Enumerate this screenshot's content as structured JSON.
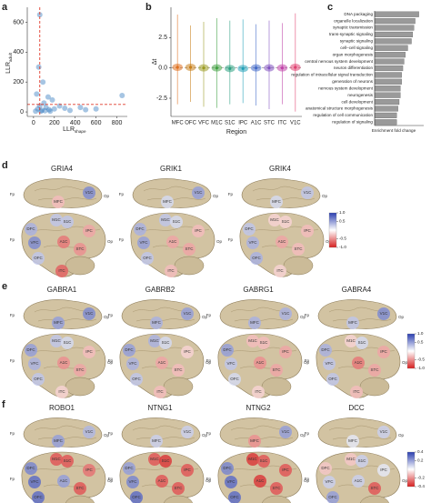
{
  "panel_labels": [
    "a",
    "b",
    "c",
    "d",
    "e",
    "f"
  ],
  "chart_data": [
    {
      "type": "scatter",
      "xlabel": "LLR",
      "xlabel_sub": "shape",
      "ylabel": "LLR",
      "ylabel_sub": "adult",
      "x": [
        40,
        80,
        120,
        150,
        60,
        100,
        30,
        50,
        60,
        200,
        250,
        300,
        350,
        450,
        500,
        600,
        850,
        140,
        180,
        90,
        20,
        70,
        110,
        160
      ],
      "y": [
        20,
        10,
        30,
        15,
        40,
        60,
        120,
        300,
        650,
        20,
        40,
        25,
        10,
        30,
        15,
        20,
        110,
        100,
        80,
        200,
        5,
        5,
        8,
        5
      ],
      "color": "#3a7fc0",
      "xlim": [
        -60,
        900
      ],
      "ylim": [
        -30,
        700
      ],
      "xticks": [
        0,
        200,
        400,
        600,
        800
      ],
      "yticks": [
        0,
        200,
        400,
        600
      ],
      "vline": 60,
      "hline": 50,
      "line_color": "#e03a2a"
    },
    {
      "type": "violin",
      "xlabel": "Region",
      "ylabel": "Δt",
      "categories": [
        "MFC",
        "OFC",
        "VFC",
        "M1C",
        "S1C",
        "IPC",
        "A1C",
        "STC",
        "ITC",
        "V1C"
      ],
      "values": [
        0.05,
        0.05,
        0.0,
        0.0,
        -0.05,
        -0.05,
        0.0,
        0.0,
        0.0,
        0.05
      ],
      "low": [
        -3.0,
        -2.8,
        -3.2,
        -3.3,
        -3.0,
        -2.9,
        -3.1,
        -3.4,
        -3.0,
        -3.6
      ],
      "high": [
        4.4,
        3.5,
        3.8,
        4.1,
        3.9,
        4.0,
        3.6,
        3.9,
        3.7,
        4.5
      ],
      "colors": [
        "#e0701e",
        "#c8801a",
        "#9a9a20",
        "#3fa040",
        "#2aa080",
        "#20a0b8",
        "#4068c8",
        "#8050c0",
        "#c040a8",
        "#e04070"
      ],
      "ylim": [
        -4,
        5
      ],
      "yticks": [
        -2.5,
        {
          "value": 0,
          "label": "0.0"
        },
        2.5
      ],
      "hline": 0
    },
    {
      "type": "barh",
      "xlabel": "Enrichment fold change",
      "color": "#9a9a9a",
      "categories": [
        "DNA packaging",
        "organelle localization",
        "synaptic transmission",
        "trans-synaptic signaling",
        "synaptic signaling",
        "cell–cell signaling",
        "organ morphogenesis",
        "central nervous system development",
        "neuron differentiation",
        "regulation of intracellular signal transduction",
        "generation of neurons",
        "nervous system development",
        "neurogenesis",
        "cell development",
        "anatomical structure morphogenesis",
        "regulation of cell communication",
        "regulation of signaling"
      ],
      "values": [
        3.6,
        3.3,
        3.2,
        3.1,
        3.0,
        2.7,
        2.5,
        2.4,
        2.3,
        2.2,
        2.2,
        2.1,
        2.1,
        2.0,
        1.9,
        1.8,
        1.8
      ],
      "xlim": [
        0,
        4
      ]
    }
  ],
  "regions": [
    "MFC",
    "DFC",
    "VFC",
    "OFC",
    "M1C",
    "S1C",
    "IPC",
    "A1C",
    "STC",
    "ITC",
    "V1C"
  ],
  "landmarks": [
    "Fp",
    "Op"
  ],
  "brain_panels": [
    {
      "clim": [
        -1,
        1
      ],
      "cticks": [
        {
          "value": 1,
          "label": "1.0"
        },
        0.5,
        -0.5,
        {
          "value": -1,
          "label": "-1.0"
        }
      ],
      "genes": [
        {
          "name": "GRIA4",
          "values": [
            -0.3,
            0.4,
            0.6,
            0.3,
            0.3,
            0.3,
            -0.4,
            -0.6,
            -0.5,
            -0.7,
            0.6
          ]
        },
        {
          "name": "GRIK1",
          "values": [
            0.2,
            0.4,
            0.5,
            0.3,
            0.3,
            0.2,
            -0.3,
            -0.4,
            -0.4,
            -0.3,
            0.5
          ]
        },
        {
          "name": "GRIK4",
          "values": [
            0.2,
            0.3,
            0.4,
            0.4,
            -0.2,
            -0.2,
            -0.3,
            -0.4,
            -0.3,
            -0.2,
            0.3
          ]
        }
      ]
    },
    {
      "clim": [
        -1,
        1
      ],
      "cticks": [
        {
          "value": 1,
          "label": "1.0"
        },
        0.5,
        -0.5,
        {
          "value": -1,
          "label": "-1.0"
        }
      ],
      "genes": [
        {
          "name": "GABRA1",
          "values": [
            0.5,
            0.5,
            0.4,
            0.3,
            0.3,
            0.2,
            -0.3,
            -0.5,
            -0.4,
            -0.2,
            0.6
          ]
        },
        {
          "name": "GABRB2",
          "values": [
            0.4,
            0.5,
            0.4,
            0.3,
            0.4,
            0.2,
            -0.2,
            -0.4,
            -0.3,
            -0.3,
            0.5
          ]
        },
        {
          "name": "GABRG1",
          "values": [
            0.4,
            0.5,
            0.3,
            0.2,
            -0.3,
            -0.3,
            -0.4,
            -0.5,
            -0.4,
            -0.2,
            0.4
          ]
        },
        {
          "name": "GABRA4",
          "values": [
            0.3,
            0.4,
            0.3,
            0.3,
            -0.2,
            0.2,
            -0.4,
            -0.6,
            -0.4,
            -0.3,
            0.6
          ]
        }
      ]
    },
    {
      "clim": [
        -0.4,
        0.4
      ],
      "cticks": [
        0.4,
        0.2,
        -0.2,
        -0.4
      ],
      "genes": [
        {
          "name": "ROBO1",
          "values": [
            0.2,
            0.25,
            0.3,
            0.3,
            -0.3,
            -0.3,
            -0.25,
            0.2,
            -0.3,
            0.2,
            0.15
          ]
        },
        {
          "name": "NTNG1",
          "values": [
            0.1,
            0.2,
            0.25,
            0.3,
            -0.3,
            -0.35,
            -0.3,
            -0.3,
            -0.3,
            0.2,
            0.1
          ]
        },
        {
          "name": "NTNG2",
          "values": [
            -0.2,
            0.25,
            0.3,
            0.3,
            -0.35,
            -0.3,
            -0.3,
            -0.35,
            -0.3,
            0.2,
            0.2
          ]
        },
        {
          "name": "DCC",
          "values": [
            0.05,
            -0.1,
            0.1,
            0.2,
            -0.1,
            0.1,
            0.05,
            0.1,
            -0.3,
            0.15,
            0.1
          ]
        }
      ]
    }
  ]
}
